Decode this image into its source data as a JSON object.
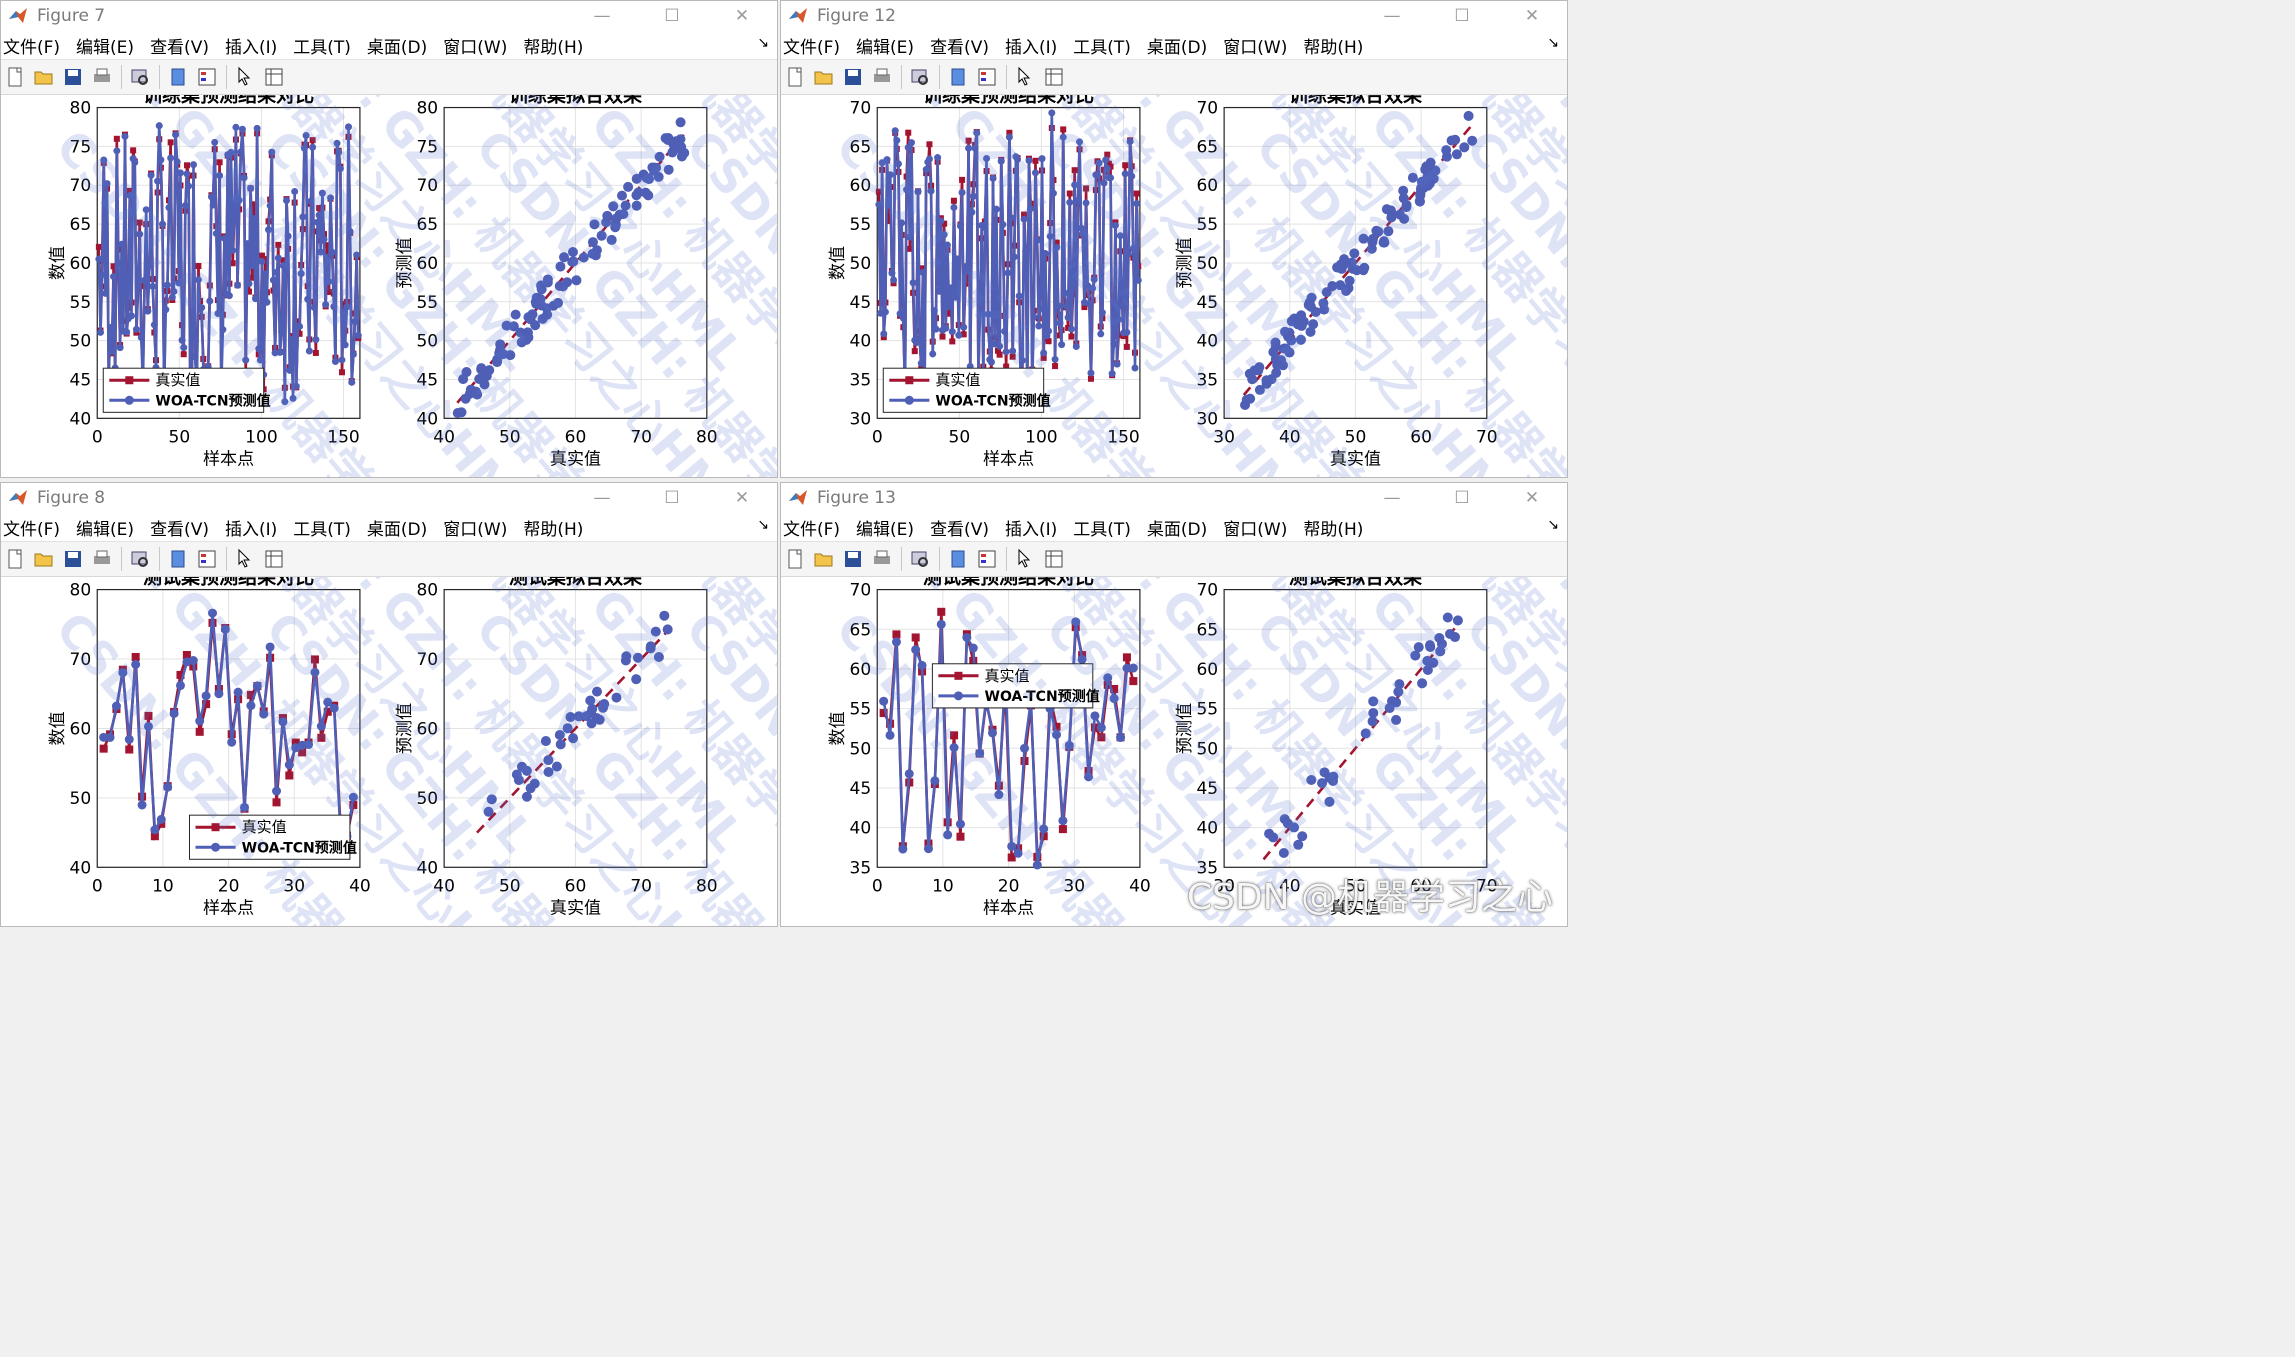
{
  "colors": {
    "true_series": "#A2142F",
    "pred_series": "#4F5FB6",
    "fit_line": "#A2142F",
    "grid": "#e3e3e3"
  },
  "menu": [
    "文件(F)",
    "编辑(E)",
    "查看(V)",
    "插入(I)",
    "工具(T)",
    "桌面(D)",
    "窗口(W)",
    "帮助(H)"
  ],
  "toolbar_icons": [
    "new-figure-icon",
    "open-file-icon",
    "save-icon",
    "print-icon",
    "print-preview-icon",
    "dock-figure-icon",
    "insert-legend-icon",
    "edit-plot-icon",
    "property-inspector-icon"
  ],
  "window_controls": [
    "minimize-icon",
    "maximize-icon",
    "close-icon"
  ],
  "watermark_text": "CSDN: GZH: 机器学习之心HML",
  "csdn_badge": "CSDN @机器学习之心",
  "windows": [
    {
      "id": "fig7",
      "title": "Figure 7",
      "left": {
        "title": "训练集预测结果对比",
        "xlabel": "样本点",
        "ylabel": "数值",
        "xlim": [
          0,
          160
        ],
        "ylim": [
          40,
          80
        ],
        "xticks": [
          0,
          50,
          100,
          150
        ],
        "yticks": [
          40,
          45,
          50,
          55,
          60,
          65,
          70,
          75,
          80
        ],
        "legend_pos": "bottom-left",
        "legend": [
          "真实值",
          "WOA-TCN预测值"
        ],
        "n": 160,
        "seed": 7,
        "amp": [
          43,
          77
        ]
      },
      "right": {
        "title": "训练集拟合效果",
        "xlabel": "真实值",
        "ylabel": "预测值",
        "xlim": [
          40,
          80
        ],
        "ylim": [
          40,
          80
        ],
        "xticks": [
          40,
          50,
          60,
          70,
          80
        ],
        "yticks": [
          40,
          45,
          50,
          55,
          60,
          65,
          70,
          75,
          80
        ],
        "range": [
          42,
          77
        ],
        "n": 110,
        "seed": 17,
        "noise": 1.6
      }
    },
    {
      "id": "fig12",
      "title": "Figure 12",
      "left": {
        "title": "训练集预测结果对比",
        "xlabel": "样本点",
        "ylabel": "数值",
        "xlim": [
          0,
          160
        ],
        "ylim": [
          30,
          70
        ],
        "xticks": [
          0,
          50,
          100,
          150
        ],
        "yticks": [
          30,
          35,
          40,
          45,
          50,
          55,
          60,
          65,
          70
        ],
        "legend_pos": "bottom-left",
        "legend": [
          "真实值",
          "WOA-TCN预测值"
        ],
        "n": 160,
        "seed": 12,
        "amp": [
          34,
          68
        ]
      },
      "right": {
        "title": "训练集拟合效果",
        "xlabel": "真实值",
        "ylabel": "预测值",
        "xlim": [
          30,
          70
        ],
        "ylim": [
          30,
          70
        ],
        "xticks": [
          30,
          40,
          50,
          60,
          70
        ],
        "yticks": [
          30,
          35,
          40,
          45,
          50,
          55,
          60,
          65,
          70
        ],
        "range": [
          33,
          68
        ],
        "n": 110,
        "seed": 22,
        "noise": 1.4
      }
    },
    {
      "id": "fig8",
      "title": "Figure 8",
      "left": {
        "title": "测试集预测结果对比",
        "xlabel": "样本点",
        "ylabel": "数值",
        "xlim": [
          0,
          40
        ],
        "ylim": [
          40,
          80
        ],
        "xticks": [
          0,
          10,
          20,
          30,
          40
        ],
        "yticks": [
          40,
          50,
          60,
          70,
          80
        ],
        "legend_pos": "bottom-right",
        "legend": [
          "真实值",
          "WOA-TCN预测值"
        ],
        "n": 40,
        "seed": 8,
        "amp": [
          44,
          77
        ]
      },
      "right": {
        "title": "测试集拟合效果",
        "xlabel": "真实值",
        "ylabel": "预测值",
        "xlim": [
          40,
          80
        ],
        "ylim": [
          40,
          80
        ],
        "xticks": [
          40,
          50,
          60,
          70,
          80
        ],
        "yticks": [
          40,
          50,
          60,
          70,
          80
        ],
        "range": [
          45,
          75
        ],
        "n": 40,
        "seed": 18,
        "noise": 1.8
      }
    },
    {
      "id": "fig13",
      "title": "Figure 13",
      "left": {
        "title": "测试集预测结果对比",
        "xlabel": "样本点",
        "ylabel": "数值",
        "xlim": [
          0,
          40
        ],
        "ylim": [
          35,
          70
        ],
        "xticks": [
          0,
          10,
          20,
          30,
          40
        ],
        "yticks": [
          35,
          40,
          45,
          50,
          55,
          60,
          65,
          70
        ],
        "legend_pos": "top-left",
        "legend": [
          "真实值",
          "WOA-TCN预测值"
        ],
        "n": 40,
        "seed": 13,
        "amp": [
          36,
          68
        ]
      },
      "right": {
        "title": "测试集拟合效果",
        "xlabel": "真实值",
        "ylabel": "预测值",
        "xlim": [
          30,
          70
        ],
        "ylim": [
          35,
          70
        ],
        "xticks": [
          30,
          40,
          50,
          60,
          70
        ],
        "yticks": [
          35,
          40,
          45,
          50,
          55,
          60,
          65,
          70
        ],
        "range": [
          36,
          66
        ],
        "n": 40,
        "seed": 23,
        "noise": 2.2
      }
    }
  ]
}
